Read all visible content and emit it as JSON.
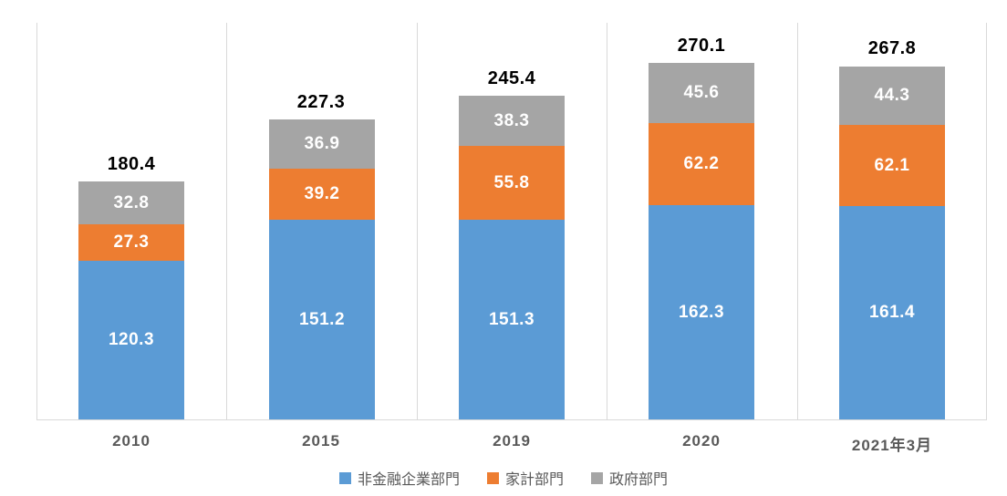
{
  "chart_data": {
    "type": "bar",
    "stacked": true,
    "categories": [
      "2010",
      "2015",
      "2019",
      "2020",
      "2021年3月"
    ],
    "series": [
      {
        "name": "非金融企業部門",
        "color": "#5B9BD5",
        "values": [
          120.3,
          151.2,
          151.3,
          162.3,
          161.4
        ]
      },
      {
        "name": "家計部門",
        "color": "#ED7D31",
        "values": [
          27.3,
          39.2,
          55.8,
          62.2,
          62.1
        ]
      },
      {
        "name": "政府部門",
        "color": "#A5A5A5",
        "values": [
          32.8,
          36.9,
          38.3,
          45.6,
          44.3
        ]
      }
    ],
    "totals": [
      180.4,
      227.3,
      245.4,
      270.1,
      267.8
    ],
    "title": "",
    "xlabel": "",
    "ylabel": "",
    "ylim": [
      0,
      300
    ],
    "grid": "vertical-category-boundaries",
    "legend_position": "bottom",
    "data_labels": "segment values inside bars (white bold), totals above bars (black bold)"
  },
  "colors": {
    "gridline": "#D9D9D9",
    "axis_line": "#D9D9D9",
    "axis_text": "#595959",
    "total_label": "#000000",
    "segment_label": "#FFFFFF",
    "background": "#FFFFFF"
  }
}
